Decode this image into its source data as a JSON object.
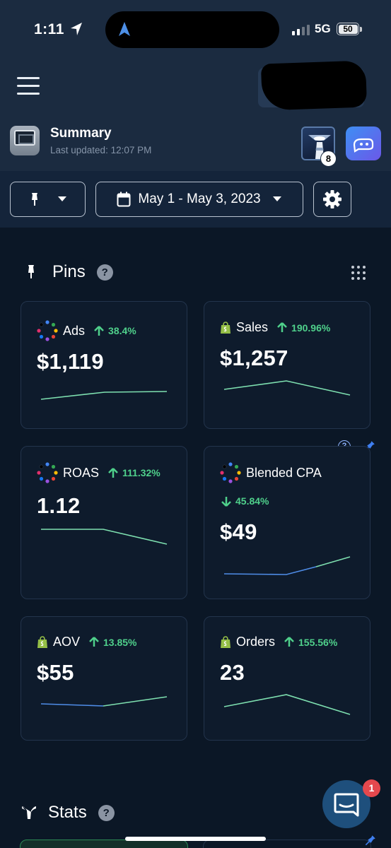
{
  "status_bar": {
    "time": "1:11",
    "network": "5G",
    "battery": "50"
  },
  "header": {
    "title": "Summary",
    "last_updated": "Last updated: 12:07 PM",
    "notification_count": "8"
  },
  "filters": {
    "date_range": "May 1 - May 3, 2023"
  },
  "pins": {
    "title": "Pins",
    "help": "?",
    "cards": [
      {
        "label": "Ads",
        "change": "38.4%",
        "direction": "up",
        "value": "$1,119",
        "source": "ads-multicolor",
        "trend": [
          1,
          2,
          2
        ]
      },
      {
        "label": "Sales",
        "change": "190.96%",
        "direction": "up",
        "value": "$1,257",
        "source": "shopify",
        "trend": [
          2,
          3,
          1
        ]
      },
      {
        "label": "ROAS",
        "change": "111.32%",
        "direction": "up",
        "value": "1.12",
        "source": "ads-multicolor",
        "trend": [
          3,
          3,
          1
        ]
      },
      {
        "label": "Blended CPA",
        "change": "45.84%",
        "direction": "down",
        "value": "$49",
        "source": "ads-multicolor",
        "trend": [
          2,
          2,
          4
        ]
      },
      {
        "label": "AOV",
        "change": "13.85%",
        "direction": "up",
        "value": "$55",
        "source": "shopify",
        "trend": [
          2,
          2,
          3
        ]
      },
      {
        "label": "Orders",
        "change": "155.56%",
        "direction": "up",
        "value": "23",
        "source": "shopify",
        "trend": [
          2,
          3,
          1
        ]
      }
    ],
    "card_help": "?"
  },
  "stats": {
    "title": "Stats",
    "help": "?"
  },
  "chat": {
    "unread": "1"
  },
  "colors": {
    "positive": "#4fd08b",
    "line_green": "#7ee0b0",
    "line_blue": "#4f8de8",
    "accent_pin": "#3f7ff0"
  }
}
